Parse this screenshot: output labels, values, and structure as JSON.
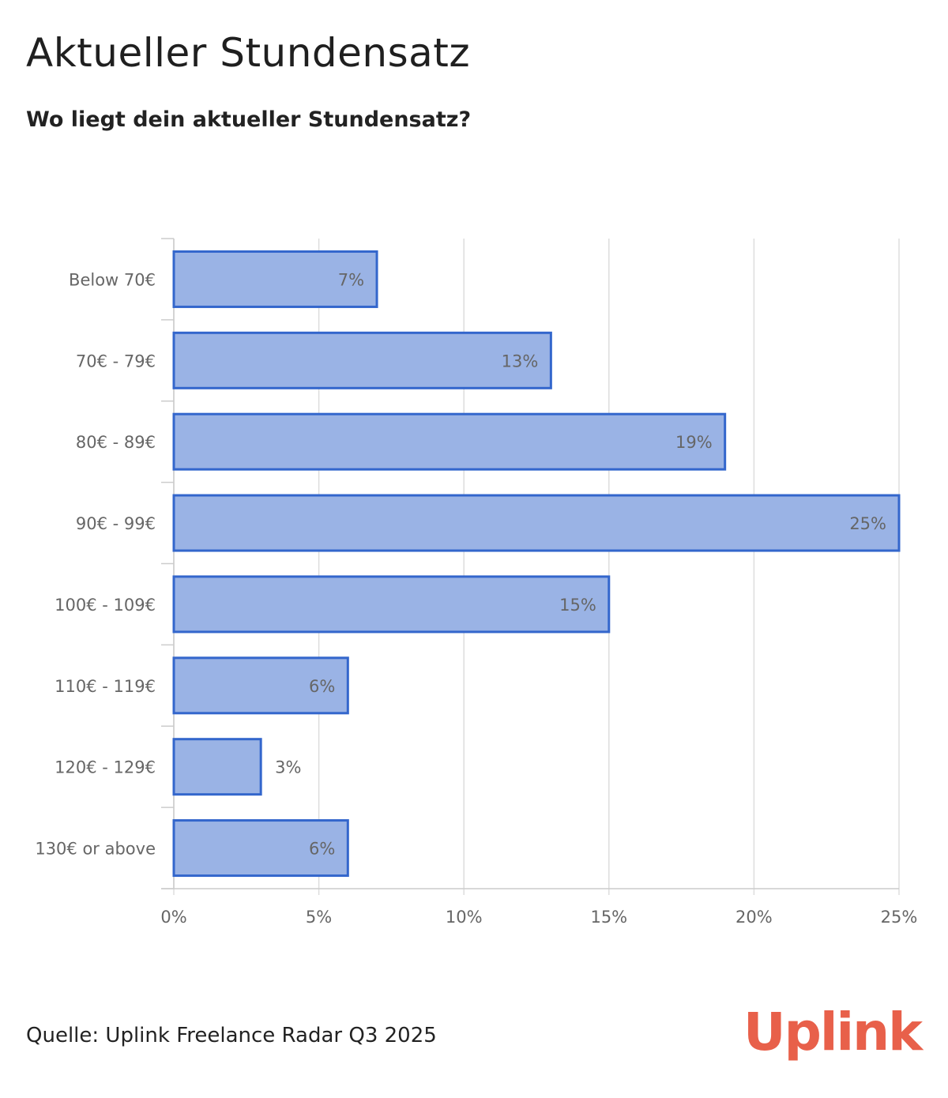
{
  "title": "Aktueller Stundensatz",
  "subtitle": "Wo liegt dein aktueller Stundensatz?",
  "source": "Quelle: Uplink Freelance Radar Q3 2025",
  "brand": "Uplink",
  "colors": {
    "bar_fill": "#98b1e4",
    "bar_stroke": "#3366cc",
    "grid": "#dddddd",
    "label_text": "#666666",
    "brand": "#e8604a"
  },
  "chart_data": {
    "type": "bar",
    "orientation": "horizontal",
    "categories": [
      "Below 70€",
      "70€ - 79€",
      "80€ - 89€",
      "90€ - 99€",
      "100€ - 109€",
      "110€ - 119€",
      "120€ - 129€",
      "130€ or above"
    ],
    "values": [
      7,
      13,
      19,
      25,
      15,
      6,
      3,
      6
    ],
    "data_labels": [
      "7%",
      "13%",
      "19%",
      "25%",
      "15%",
      "6%",
      "3%",
      "6%"
    ],
    "x_ticks": [
      "0%",
      "5%",
      "10%",
      "15%",
      "20%",
      "25%"
    ],
    "xlim": [
      0,
      25
    ],
    "title": "Aktueller Stundensatz",
    "subtitle": "Wo liegt dein aktueller Stundensatz?",
    "grid": true,
    "legend": "none"
  }
}
